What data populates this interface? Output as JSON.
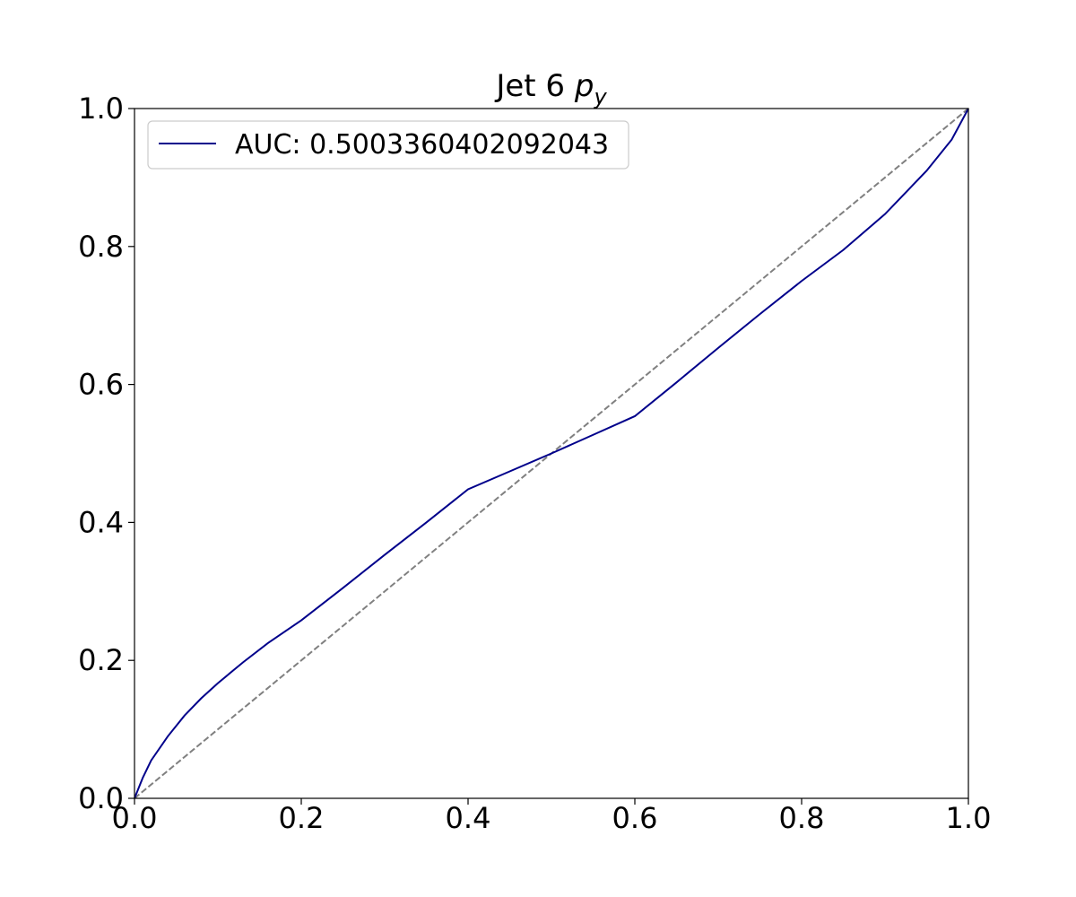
{
  "chart_data": {
    "type": "line",
    "title": {
      "prefix": "Jet 6 ",
      "variable": "p",
      "subscript": "y"
    },
    "xlabel": "",
    "ylabel": "",
    "xlim": [
      0.0,
      1.0
    ],
    "ylim": [
      0.0,
      1.0
    ],
    "x_ticks": [
      "0.0",
      "0.2",
      "0.4",
      "0.6",
      "0.8",
      "1.0"
    ],
    "y_ticks": [
      "0.0",
      "0.2",
      "0.4",
      "0.6",
      "0.8",
      "1.0"
    ],
    "grid": false,
    "legend_position": "top-left",
    "series": [
      {
        "name": "AUC: 0.5003360402092043",
        "color": "#00008b",
        "style": "solid",
        "x": [
          0.0,
          0.01,
          0.02,
          0.04,
          0.06,
          0.08,
          0.1,
          0.13,
          0.16,
          0.2,
          0.25,
          0.3,
          0.35,
          0.4,
          0.45,
          0.5,
          0.55,
          0.6,
          0.65,
          0.7,
          0.75,
          0.8,
          0.85,
          0.9,
          0.95,
          0.98,
          1.0
        ],
        "y": [
          0.0,
          0.03,
          0.055,
          0.09,
          0.12,
          0.145,
          0.167,
          0.197,
          0.225,
          0.258,
          0.305,
          0.353,
          0.4,
          0.448,
          0.474,
          0.5,
          0.527,
          0.554,
          0.603,
          0.653,
          0.702,
          0.75,
          0.795,
          0.847,
          0.91,
          0.955,
          1.0
        ]
      },
      {
        "color": "#808080",
        "style": "dashed",
        "x": [
          0.0,
          1.0
        ],
        "y": [
          0.0,
          1.0
        ]
      }
    ]
  }
}
